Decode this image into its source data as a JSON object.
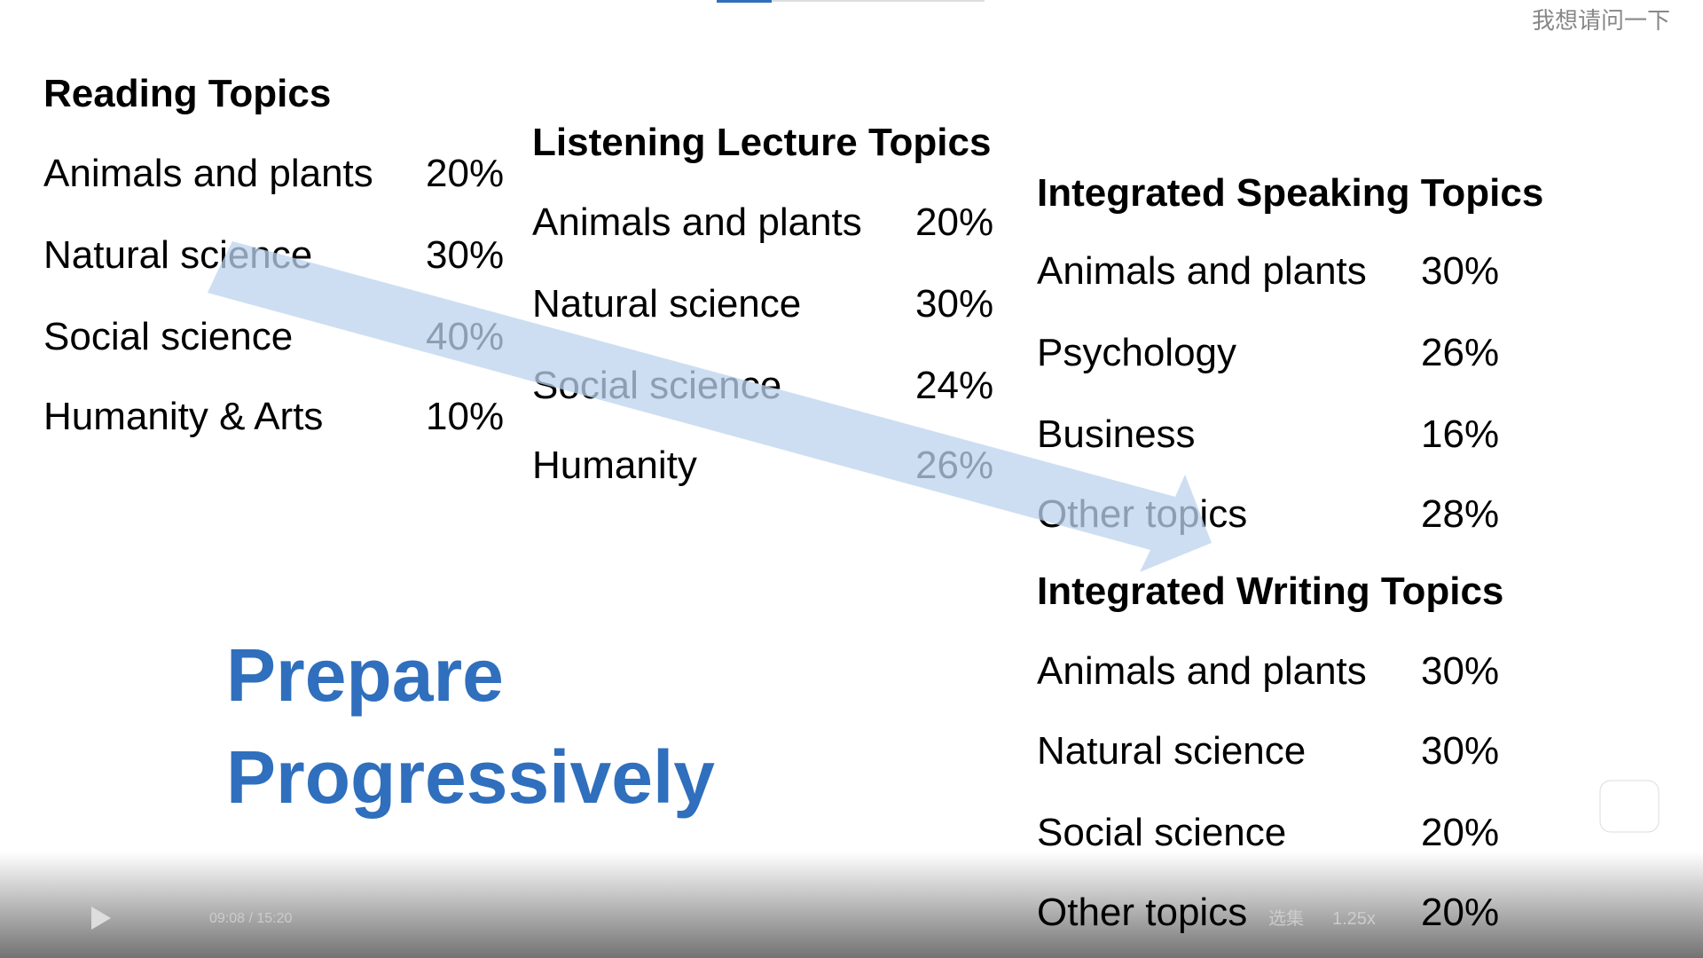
{
  "sections": [
    {
      "title": "Reading Topics",
      "rows": [
        [
          "Animals and plants",
          "20%"
        ],
        [
          "Natural science",
          "30%"
        ],
        [
          "Social science",
          "40%"
        ],
        [
          "Humanity & Arts",
          "10%"
        ]
      ]
    },
    {
      "title": "Listening Lecture Topics",
      "rows": [
        [
          "Animals and plants",
          "20%"
        ],
        [
          "Natural science",
          "30%"
        ],
        [
          "Social science",
          "24%"
        ],
        [
          "Humanity",
          "26%"
        ]
      ]
    },
    {
      "title": "Integrated Speaking Topics",
      "rows": [
        [
          "Animals and plants",
          "30%"
        ],
        [
          "Psychology",
          "26%"
        ],
        [
          "Business",
          "16%"
        ],
        [
          "Other topics",
          "28%"
        ]
      ]
    },
    {
      "title": "Integrated Writing Topics",
      "rows": [
        [
          "Animals and plants",
          "30%"
        ],
        [
          "Natural science",
          "30%"
        ],
        [
          "Social science",
          "20%"
        ],
        [
          "Other topics",
          "20%"
        ]
      ]
    }
  ],
  "slogan": [
    "Prepare",
    "Progressively"
  ],
  "comment": "我想请问一下",
  "player": {
    "time": "09:08 / 15:20",
    "episodes": "选集",
    "speed": "1.25x"
  }
}
